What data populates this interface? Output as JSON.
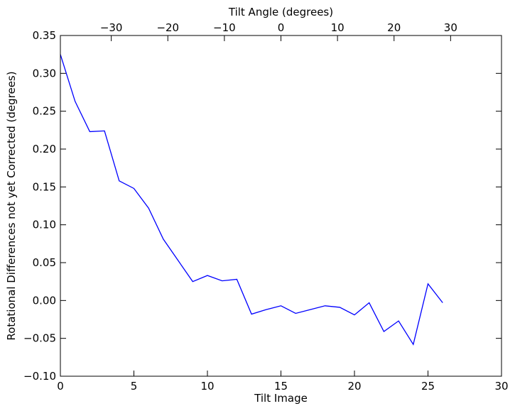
{
  "chart_data": {
    "type": "line",
    "title": "",
    "xlabel": "Tilt Image",
    "ylabel": "Rotational Differences not yet Corrected (degrees)",
    "top_xlabel": "Tilt Angle (degrees)",
    "xlim": [
      0,
      30
    ],
    "ylim": [
      -0.1,
      0.35
    ],
    "top_xlim": [
      -39,
      39
    ],
    "grid": false,
    "line_color": "#0000ff",
    "x_ticks": [
      0,
      5,
      10,
      15,
      20,
      25,
      30
    ],
    "x_tick_labels": [
      "0",
      "5",
      "10",
      "15",
      "20",
      "25",
      "30"
    ],
    "y_ticks": [
      -0.1,
      -0.05,
      0.0,
      0.05,
      0.1,
      0.15,
      0.2,
      0.25,
      0.3,
      0.35
    ],
    "y_tick_labels": [
      "−0.10",
      "−0.05",
      "0.00",
      "0.05",
      "0.10",
      "0.15",
      "0.20",
      "0.25",
      "0.30",
      "0.35"
    ],
    "top_x_ticks": [
      -30,
      -20,
      -10,
      0,
      10,
      20,
      30
    ],
    "top_x_tick_labels": [
      "−30",
      "−20",
      "−10",
      "0",
      "10",
      "20",
      "30"
    ],
    "series": [
      {
        "x": [
          0,
          1,
          2,
          3,
          4,
          5,
          6,
          7,
          8,
          9,
          10,
          11,
          12,
          13,
          14,
          15,
          16,
          17,
          18,
          19,
          20,
          21,
          22,
          23,
          24,
          25,
          26
        ],
        "values": [
          0.325,
          0.263,
          0.223,
          0.224,
          0.158,
          0.148,
          0.122,
          0.081,
          0.053,
          0.025,
          0.033,
          0.026,
          0.028,
          -0.018,
          -0.012,
          -0.007,
          -0.017,
          -0.012,
          -0.007,
          -0.009,
          -0.019,
          -0.003,
          -0.041,
          -0.027,
          -0.058,
          0.022,
          -0.003
        ]
      }
    ]
  }
}
